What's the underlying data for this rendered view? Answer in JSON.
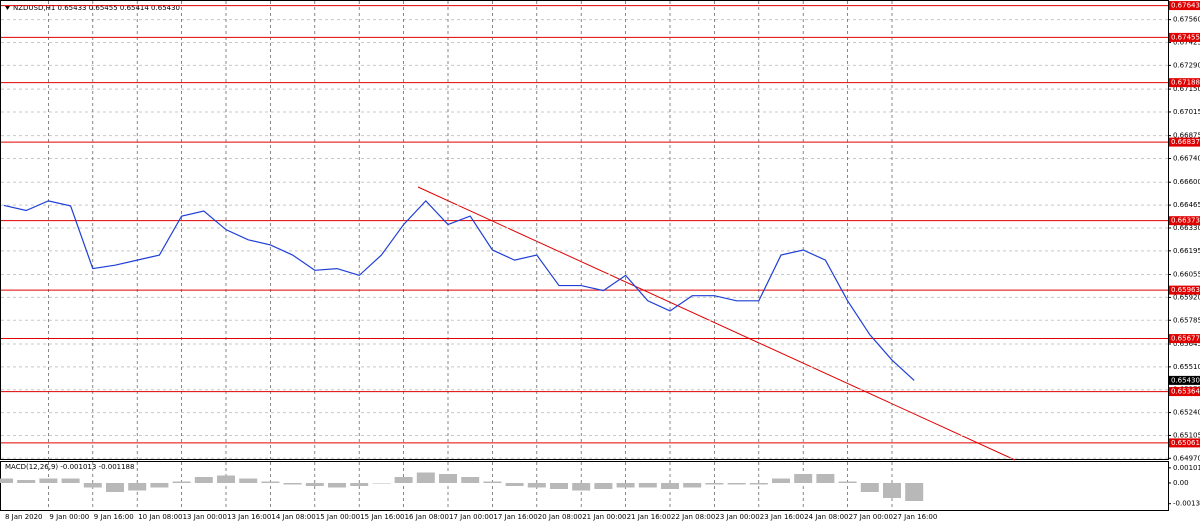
{
  "chart_data": [
    {
      "type": "line",
      "title": "NZDUSD,H1  0.65433 0.65455 0.65414 0.65430",
      "color": "#1f3fd6",
      "grid": true,
      "categories": [
        "8 Jan 2020",
        null,
        "9 Jan 00:00",
        null,
        "9 Jan 16:00",
        null,
        "10 Jan 08:00",
        null,
        "13 Jan 00:00",
        null,
        "13 Jan 16:00",
        null,
        "14 Jan 08:00",
        null,
        "15 Jan 00:00",
        null,
        "15 Jan 16:00",
        null,
        "16 Jan 08:00",
        null,
        "17 Jan 00:00",
        null,
        "17 Jan 16:00",
        null,
        "20 Jan 08:00",
        null,
        "21 Jan 00:00",
        null,
        "21 Jan 16:00",
        null,
        "22 Jan 08:00",
        null,
        "23 Jan 00:00",
        null,
        "23 Jan 16:00",
        null,
        "24 Jan 08:00",
        null,
        "27 Jan 00:00",
        null,
        "27 Jan 16:00",
        null
      ],
      "values": [
        0.66463,
        0.66433,
        0.6649,
        0.6646,
        0.6609,
        0.6611,
        0.6614,
        0.6617,
        0.664,
        0.6643,
        0.6632,
        0.6626,
        0.6623,
        0.6617,
        0.6608,
        0.6609,
        0.6605,
        0.6617,
        0.6635,
        0.6649,
        0.6635,
        0.664,
        0.662,
        0.6614,
        0.6617,
        0.6599,
        0.6599,
        0.6596,
        0.6605,
        0.659,
        0.6584,
        0.6593,
        0.6593,
        0.659,
        0.659,
        0.6617,
        0.662,
        0.6614,
        0.659,
        0.657,
        0.6555,
        0.6543
      ],
      "ylim": [
        0.6496,
        0.6767
      ],
      "yticks": [
        {
          "value": 0.6756,
          "label": "0.67560"
        },
        0.67425,
        {
          "value": 0.6729,
          "label": "0.67290"
        },
        {
          "value": 0.6715,
          "label": "0.67150"
        },
        0.67015,
        0.66875,
        {
          "value": 0.6674,
          "label": "0.66740"
        },
        {
          "value": 0.666,
          "label": "0.66600"
        },
        0.66465,
        {
          "value": 0.6633,
          "label": "0.66330"
        },
        0.66195,
        0.66055,
        {
          "value": 0.6592,
          "label": "0.65920"
        },
        0.65785,
        0.65645,
        {
          "value": 0.6551,
          "label": "0.65510"
        },
        0.65375,
        {
          "value": 0.6524,
          "label": "0.65240"
        },
        0.65105,
        {
          "value": 0.6497,
          "label": "0.64970"
        }
      ],
      "hlines": [
        0.67643,
        0.67455,
        0.67188,
        0.66837,
        0.66373,
        0.65963,
        0.65677,
        0.65364,
        0.65061
      ],
      "hline_color": "#e00000",
      "last_price": {
        "value": 0.6543,
        "label": "0.65430"
      }
    },
    {
      "type": "bar",
      "title": "MACD(12,26,9) -0.001013 -0.001188",
      "color": "#b8b8b8",
      "values": [
        0.0003,
        0.0002,
        0.0003,
        0.0003,
        -0.0003,
        -0.0006,
        -0.0005,
        -0.0003,
        0.0001,
        0.0004,
        0.0005,
        0.0003,
        0.0001,
        -0.0001,
        -0.0002,
        -0.0003,
        -0.0002,
        0,
        0.0004,
        0.0007,
        0.0006,
        0.0004,
        0.0001,
        -0.0002,
        -0.0003,
        -0.0004,
        -0.0005,
        -0.0004,
        -0.0003,
        -0.0003,
        -0.0004,
        -0.0003,
        -0.0001,
        -0.0001,
        -0.0001,
        0.0003,
        0.0006,
        0.0006,
        0.0001,
        -0.0006,
        -0.001,
        -0.0012
      ],
      "ylim": [
        -0.0018,
        0.0014
      ],
      "yticks": [
        0.00101,
        {
          "value": 0,
          "label": "0.00"
        },
        -0.001378
      ]
    }
  ]
}
